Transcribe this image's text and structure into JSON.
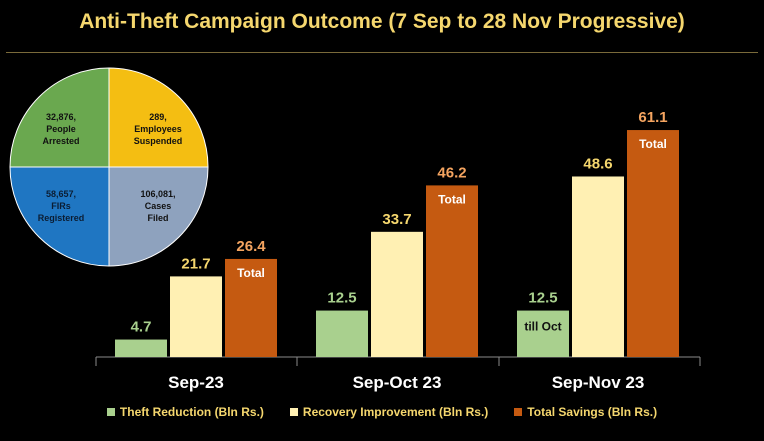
{
  "title": "Anti-Theft Campaign Outcome (7 Sep to 28 Nov Progressive)",
  "pie": {
    "slices": [
      {
        "value": "32,876,",
        "label1": "People",
        "label2": "Arrested",
        "color": "#6AA84F"
      },
      {
        "value": "289,",
        "label1": "Employees",
        "label2": "Suspended",
        "color": "#F4BE12"
      },
      {
        "value": "106,081,",
        "label1": "Cases",
        "label2": "Filed",
        "color": "#8EA2BE"
      },
      {
        "value": "58,657,",
        "label1": "FIRs",
        "label2": "Registered",
        "color": "#1F76C2"
      }
    ]
  },
  "chart_data": {
    "type": "bar",
    "title": "Anti-Theft Campaign Outcome (7 Sep to 28 Nov Progressive)",
    "categories": [
      "Sep-23",
      "Sep-Oct 23",
      "Sep-Nov 23"
    ],
    "series": [
      {
        "name": "Theft Reduction (Bln Rs.)",
        "values": [
          4.7,
          12.5,
          12.5
        ],
        "color": "#A9D08E",
        "label_color": "#A9D08E"
      },
      {
        "name": "Recovery Improvement (Bln Rs.)",
        "values": [
          21.7,
          33.7,
          48.6
        ],
        "color": "#FFF0B3",
        "label_color": "#F5D76E"
      },
      {
        "name": "Total Savings (Bln Rs.)",
        "values": [
          26.4,
          46.2,
          61.1
        ],
        "color": "#C55A11",
        "label_color": "#F4A460"
      }
    ],
    "bar_annotations": [
      {
        "series": 2,
        "category": 0,
        "text": "Total"
      },
      {
        "series": 2,
        "category": 1,
        "text": "Total"
      },
      {
        "series": 2,
        "category": 2,
        "text": "Total"
      },
      {
        "series": 0,
        "category": 2,
        "text": "till Oct"
      }
    ],
    "ylim": [
      0,
      70
    ],
    "xlabel": "",
    "ylabel": "",
    "legend": "bottom"
  }
}
